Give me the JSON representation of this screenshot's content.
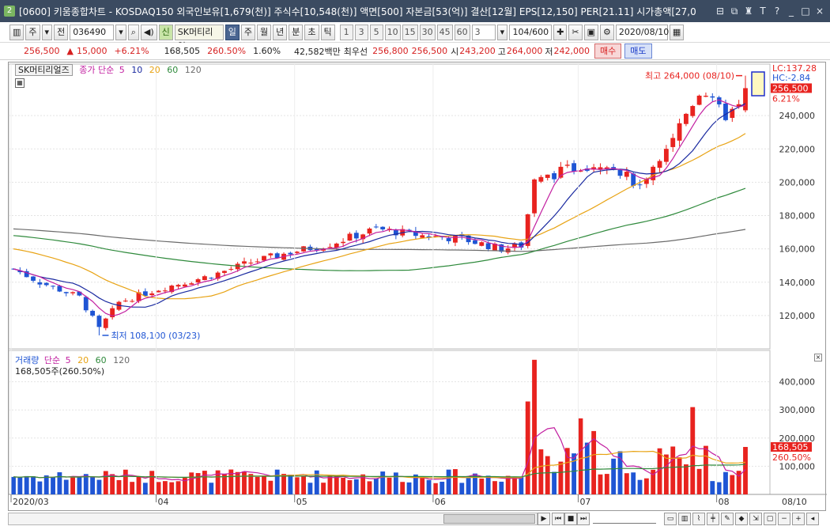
{
  "window": {
    "icon_text": "2",
    "title": "[0600] 키움종합차트 - KOSDAQ150 외국인보유[1,679(천)] 주식수[10,548(천)] 액면[500] 자본금[53(억)] 결산[12월] EPS[12,150] PER[21.11] 시가총액[27,0",
    "buttons": [
      "⊟",
      "⧉",
      "♜",
      "T",
      "?",
      "_",
      "□",
      "×"
    ]
  },
  "toolbar": {
    "market_label": "주",
    "prev_label": "전",
    "code": "036490",
    "search_icon": "search-icon",
    "sound_icon": "speaker-icon",
    "new_label": "신",
    "stock_name": "SK머티리얼",
    "periods": [
      "일",
      "주",
      "월",
      "년",
      "분",
      "초",
      "틱"
    ],
    "selected_period": "일",
    "ticks": [
      "1",
      "3",
      "5",
      "10",
      "15",
      "30",
      "45",
      "60"
    ],
    "tick_value": "3",
    "count": "104/600",
    "date": "2020/08/10"
  },
  "price_info": {
    "price": "256,500",
    "arrow": "▲",
    "change": "15,000",
    "change_pct": "+6.21%",
    "volume": "168,505",
    "volume_ratio": "260.50%",
    "turnover": "1.60%",
    "amount": "42,582백만",
    "best_label": "최우선",
    "ask": "256,800",
    "bid": "256,500",
    "open_label": "시",
    "open": "243,200",
    "high_label": "고",
    "high": "264,000",
    "low_label": "저",
    "low": "242,000",
    "buy_label": "매수",
    "sell_label": "매도"
  },
  "price_panel": {
    "stock_name": "SK머티리얼즈",
    "indicator": "종가 단순",
    "ma_periods": [
      "5",
      "10",
      "20",
      "60",
      "120"
    ],
    "lc": "LC:137.28",
    "hc": "HC:-2.84",
    "price_tag": "256,500",
    "pct_tag": "6.21%",
    "high_annot": "최고 264,000 (08/10)",
    "low_annot": "최저 108,100 (03/23)",
    "y_ticks": [
      "240,000",
      "220,000",
      "200,000",
      "180,000",
      "160,000",
      "140,000",
      "120,000"
    ]
  },
  "volume_panel": {
    "label": "거래량",
    "indicator": "단순",
    "ma_periods": [
      "5",
      "20",
      "60",
      "120"
    ],
    "summary": "168,505주(260.50%)",
    "value_tag": "168,505",
    "pct_tag": "260.50%",
    "y_ticks": [
      "400,000",
      "300,000",
      "200,000",
      "100,000"
    ]
  },
  "x_axis": [
    "2020/03",
    "04",
    "05",
    "06",
    "07",
    "08"
  ],
  "x_axis_cursor": "08/10",
  "colors": {
    "up": "#e8231f",
    "down": "#1f55d4",
    "ma5": "#c21fa0",
    "ma10": "#1a2aa0",
    "ma20": "#e8a314",
    "ma60": "#2f8a3c",
    "ma120": "#6b6b6b",
    "title_bg": "#3b4b61"
  },
  "chart_data": {
    "type": "candlestick",
    "period": "daily",
    "x_range": [
      "2020-03-03",
      "2020-08-10"
    ],
    "y_range": [
      100000,
      270000
    ],
    "approx_close_by_month": [
      {
        "month": "2020/03",
        "close_range": [
          108100,
          150000
        ]
      },
      {
        "month": "04",
        "close_range": [
          130000,
          168000
        ]
      },
      {
        "month": "05",
        "close_range": [
          160000,
          180000
        ]
      },
      {
        "month": "06",
        "close_range": [
          158000,
          215000
        ]
      },
      {
        "month": "07",
        "close_range": [
          196000,
          257000
        ]
      },
      {
        "month": "08",
        "close_range": [
          238000,
          256500
        ]
      }
    ],
    "high": 264000,
    "low": 108100
  }
}
